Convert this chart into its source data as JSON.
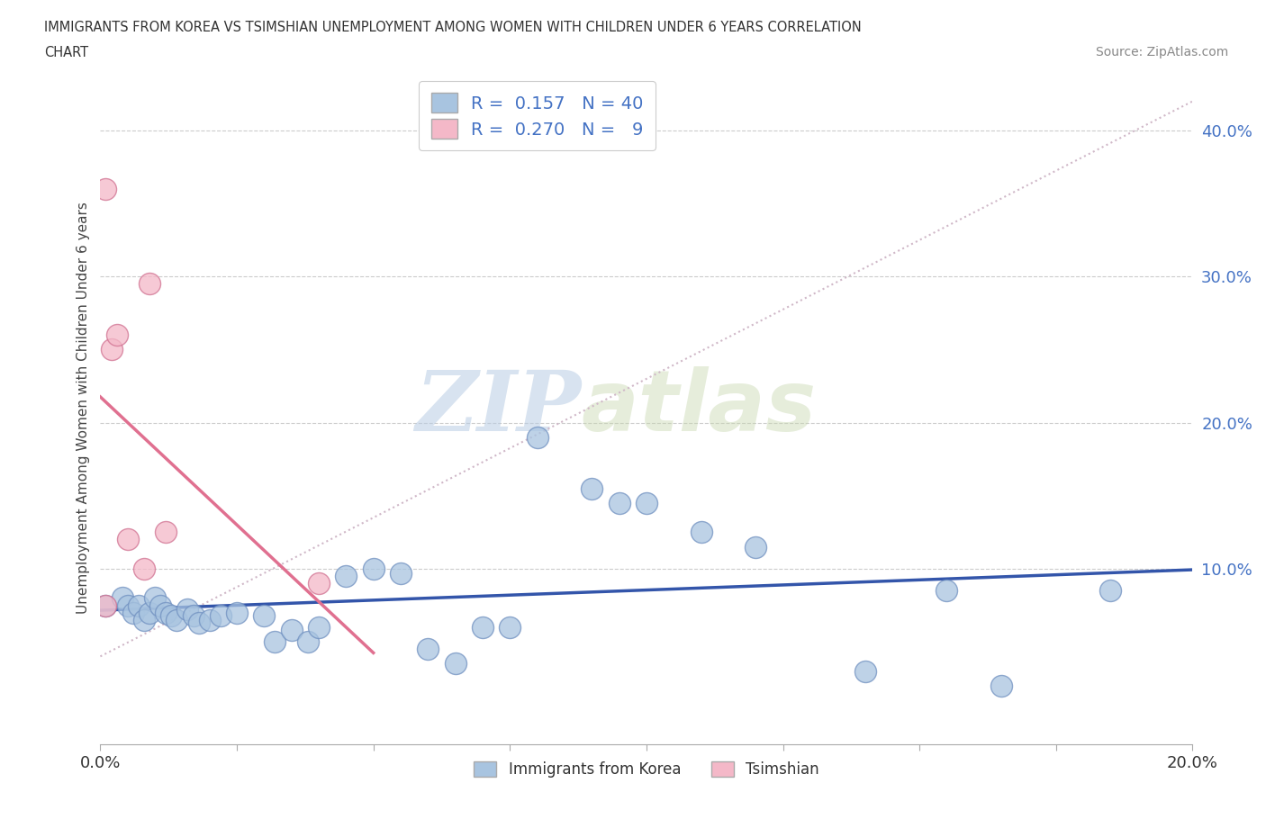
{
  "title_line1": "IMMIGRANTS FROM KOREA VS TSIMSHIAN UNEMPLOYMENT AMONG WOMEN WITH CHILDREN UNDER 6 YEARS CORRELATION",
  "title_line2": "CHART",
  "source": "Source: ZipAtlas.com",
  "ylabel": "Unemployment Among Women with Children Under 6 years",
  "xlim": [
    0.0,
    0.2
  ],
  "ylim": [
    -0.02,
    0.44
  ],
  "legend_korea_R": "0.157",
  "legend_korea_N": "40",
  "legend_tsimshian_R": "0.270",
  "legend_tsimshian_N": "9",
  "korea_color": "#a8c4e0",
  "tsimshian_color": "#f4b8c8",
  "korea_line_color": "#3355aa",
  "tsimshian_line_color": "#e07090",
  "diag_line_color": "#d0b8c8",
  "background_color": "#ffffff",
  "watermark_zip": "ZIP",
  "watermark_atlas": "atlas",
  "korea_points_x": [
    0.001,
    0.004,
    0.005,
    0.006,
    0.007,
    0.008,
    0.009,
    0.01,
    0.011,
    0.012,
    0.013,
    0.014,
    0.016,
    0.017,
    0.018,
    0.02,
    0.022,
    0.025,
    0.03,
    0.032,
    0.035,
    0.038,
    0.04,
    0.045,
    0.05,
    0.055,
    0.06,
    0.065,
    0.07,
    0.075,
    0.08,
    0.09,
    0.095,
    0.1,
    0.11,
    0.12,
    0.14,
    0.155,
    0.165,
    0.185
  ],
  "korea_points_y": [
    0.075,
    0.08,
    0.075,
    0.07,
    0.075,
    0.065,
    0.07,
    0.08,
    0.075,
    0.07,
    0.068,
    0.065,
    0.072,
    0.068,
    0.063,
    0.065,
    0.068,
    0.07,
    0.068,
    0.05,
    0.058,
    0.05,
    0.06,
    0.095,
    0.1,
    0.097,
    0.045,
    0.035,
    0.06,
    0.06,
    0.19,
    0.155,
    0.145,
    0.145,
    0.125,
    0.115,
    0.03,
    0.085,
    0.02,
    0.085
  ],
  "tsimshian_points_x": [
    0.001,
    0.001,
    0.002,
    0.003,
    0.005,
    0.008,
    0.009,
    0.012,
    0.04
  ],
  "tsimshian_points_y": [
    0.36,
    0.075,
    0.25,
    0.26,
    0.12,
    0.1,
    0.295,
    0.125,
    0.09
  ],
  "tsim_line_x_start": 0.0,
  "tsim_line_x_end": 0.05,
  "korea_line_x_start": 0.0,
  "korea_line_x_end": 0.2
}
